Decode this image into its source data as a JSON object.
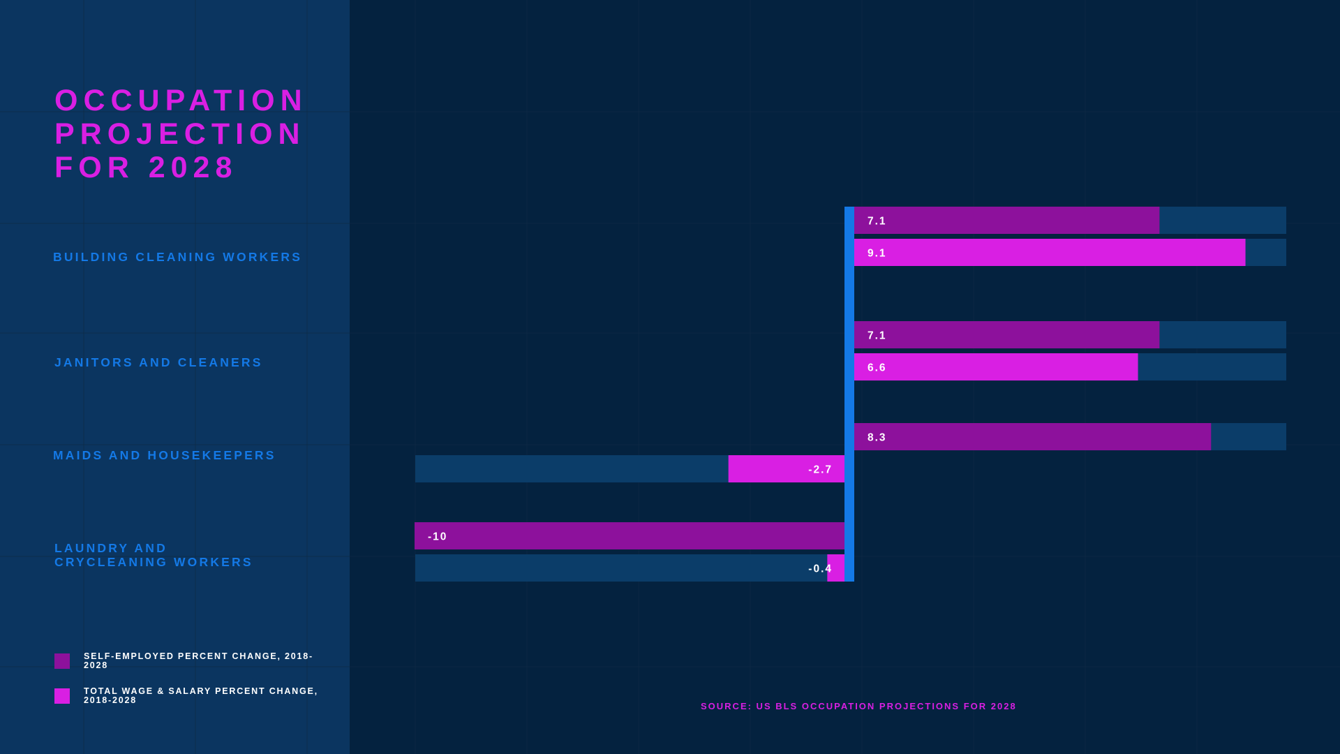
{
  "title": "OCCUPATION\nPROJECTION\nFOR 2028",
  "source": "SOURCE: US BLS OCCUPATION PROJECTIONS FOR 2028",
  "colors": {
    "self_employed": "#8d119c",
    "wage_salary": "#d91fe3",
    "track": "#0b3d69",
    "axis": "#1479e6",
    "label": "#1479e6"
  },
  "legend": [
    {
      "label": "SELF-EMPLOYED PERCENT CHANGE, 2018-2028",
      "color": "#8d119c"
    },
    {
      "label": "TOTAL WAGE & SALARY PERCENT CHANGE, 2018-2028",
      "color": "#d91fe3"
    }
  ],
  "chart_data": {
    "type": "bar",
    "orientation": "horizontal",
    "categories": [
      "BUILDING CLEANING WORKERS",
      "JANITORS AND CLEANERS",
      "MAIDS AND HOUSEKEEPERS",
      "LAUNDRY AND\nCRYCLEANING WORKERS"
    ],
    "series": [
      {
        "name": "SELF-EMPLOYED PERCENT CHANGE, 2018-2028",
        "values": [
          7.1,
          7.1,
          8.3,
          -10
        ]
      },
      {
        "name": "TOTAL WAGE & SALARY PERCENT CHANGE, 2018-2028",
        "values": [
          9.1,
          6.6,
          -2.7,
          -0.4
        ]
      }
    ],
    "data_labels": [
      [
        "7.1",
        "9.1"
      ],
      [
        "7.1",
        "6.6"
      ],
      [
        "8.3",
        "-2.7"
      ],
      [
        "-10",
        "-0.4"
      ]
    ],
    "xlim": [
      -10,
      10
    ],
    "legend_position": "bottom-left"
  }
}
